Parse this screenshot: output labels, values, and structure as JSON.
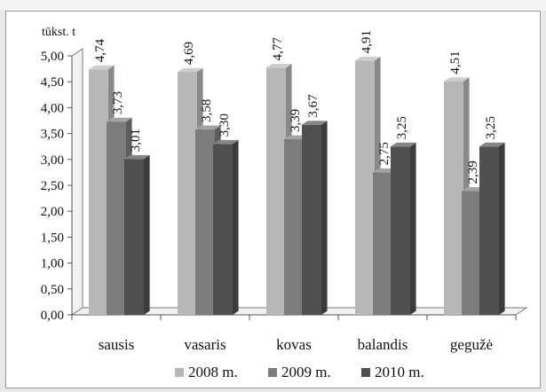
{
  "chart_data": {
    "type": "bar",
    "subtype": "3d-clustered-column",
    "unit_label": "tūkst. t",
    "categories": [
      "sausis",
      "vasaris",
      "kovas",
      "balandis",
      "gegužė"
    ],
    "series": [
      {
        "name": "2008 m.",
        "color": "#b7b7b7",
        "values": [
          4.74,
          4.69,
          4.77,
          4.91,
          4.51
        ],
        "labels": [
          "4,74",
          "4,69",
          "4,77",
          "4,91",
          "4,51"
        ]
      },
      {
        "name": "2009 m.",
        "color": "#7c7c7c",
        "values": [
          3.73,
          3.58,
          3.39,
          2.75,
          2.39
        ],
        "labels": [
          "3,73",
          "3,58",
          "3,39",
          "2,75",
          "2,39"
        ]
      },
      {
        "name": "2010 m.",
        "color": "#505050",
        "values": [
          3.01,
          3.3,
          3.67,
          3.25,
          3.25
        ],
        "labels": [
          "3,01",
          "3,30",
          "3,67",
          "3,25",
          "3,25"
        ]
      }
    ],
    "ylim": [
      0,
      5
    ],
    "yticks": [
      "0,00",
      "0,50",
      "1,00",
      "1,50",
      "2,00",
      "2,50",
      "3,00",
      "3,50",
      "4,00",
      "4,50",
      "5,00"
    ],
    "grid": false,
    "legend": "bottom"
  }
}
